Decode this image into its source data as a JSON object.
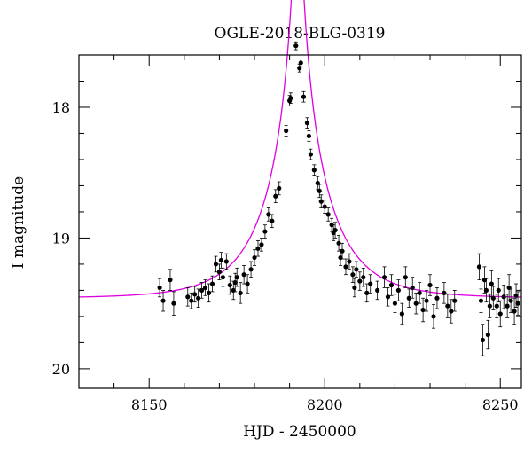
{
  "chart_data": {
    "type": "scatter",
    "title": "OGLE-2018-BLG-0319",
    "xlabel": "HJD - 2450000",
    "ylabel": "I magnitude",
    "xlim": [
      8130,
      8256
    ],
    "ylim": [
      20.15,
      17.6
    ],
    "y_inverted": true,
    "x_ticks": [
      8150,
      8200,
      8250
    ],
    "x_tick_labels": [
      "8150",
      "8200",
      "8250"
    ],
    "y_ticks": [
      18,
      19,
      20
    ],
    "y_tick_labels": [
      "18",
      "19",
      "20"
    ],
    "grid": false,
    "legend": "none",
    "colors": {
      "points": "#000000",
      "model": "#e000e0"
    },
    "model": {
      "description_none": "",
      "t0": 8192.3,
      "u0": 0.06,
      "tE": 17,
      "baseline": 19.46
    },
    "series": [
      {
        "points": [
          [
            8153,
            19.38,
            0.07
          ],
          [
            8154,
            19.48,
            0.08
          ],
          [
            8156,
            19.32,
            0.08
          ],
          [
            8157,
            19.5,
            0.09
          ],
          [
            8161,
            19.45,
            0.07
          ],
          [
            8162,
            19.48,
            0.06
          ],
          [
            8163,
            19.43,
            0.06
          ],
          [
            8164,
            19.46,
            0.07
          ],
          [
            8165,
            19.4,
            0.06
          ],
          [
            8166,
            19.38,
            0.06
          ],
          [
            8167,
            19.42,
            0.07
          ],
          [
            8168,
            19.35,
            0.06
          ],
          [
            8169,
            19.2,
            0.06
          ],
          [
            8170,
            19.26,
            0.06
          ],
          [
            8170.5,
            19.17,
            0.06
          ],
          [
            8171,
            19.3,
            0.07
          ],
          [
            8172,
            19.18,
            0.06
          ],
          [
            8173,
            19.36,
            0.07
          ],
          [
            8174,
            19.4,
            0.07
          ],
          [
            8174.5,
            19.34,
            0.07
          ],
          [
            8175,
            19.3,
            0.07
          ],
          [
            8176,
            19.42,
            0.08
          ],
          [
            8177,
            19.28,
            0.07
          ],
          [
            8178,
            19.35,
            0.07
          ],
          [
            8179,
            19.24,
            0.06
          ],
          [
            8180,
            19.15,
            0.06
          ],
          [
            8181,
            19.08,
            0.06
          ],
          [
            8182,
            19.05,
            0.05
          ],
          [
            8183,
            18.95,
            0.05
          ],
          [
            8184,
            18.82,
            0.05
          ],
          [
            8185,
            18.87,
            0.05
          ],
          [
            8186,
            18.68,
            0.05
          ],
          [
            8187,
            18.62,
            0.05
          ],
          [
            8189,
            18.18,
            0.04
          ],
          [
            8190,
            17.95,
            0.04
          ],
          [
            8190.3,
            17.93,
            0.04
          ],
          [
            8191.8,
            17.53,
            0.03
          ],
          [
            8192.8,
            17.7,
            0.03
          ],
          [
            8193.2,
            17.66,
            0.03
          ],
          [
            8194,
            17.92,
            0.04
          ],
          [
            8195,
            18.12,
            0.04
          ],
          [
            8195.5,
            18.22,
            0.04
          ],
          [
            8196,
            18.36,
            0.04
          ],
          [
            8197,
            18.48,
            0.04
          ],
          [
            8198,
            18.58,
            0.05
          ],
          [
            8198.5,
            18.64,
            0.05
          ],
          [
            8199,
            18.72,
            0.05
          ],
          [
            8200,
            18.76,
            0.05
          ],
          [
            8201,
            18.82,
            0.05
          ],
          [
            8202,
            18.9,
            0.05
          ],
          [
            8202.5,
            18.96,
            0.06
          ],
          [
            8203,
            18.94,
            0.06
          ],
          [
            8204,
            19.04,
            0.06
          ],
          [
            8204.5,
            19.15,
            0.06
          ],
          [
            8205,
            19.1,
            0.06
          ],
          [
            8206,
            19.22,
            0.06
          ],
          [
            8207,
            19.18,
            0.06
          ],
          [
            8208,
            19.28,
            0.06
          ],
          [
            8208.5,
            19.38,
            0.07
          ],
          [
            8209,
            19.24,
            0.06
          ],
          [
            8210,
            19.33,
            0.07
          ],
          [
            8211,
            19.3,
            0.07
          ],
          [
            8212,
            19.42,
            0.07
          ],
          [
            8213,
            19.35,
            0.07
          ],
          [
            8215,
            19.4,
            0.07
          ],
          [
            8217,
            19.3,
            0.08
          ],
          [
            8218,
            19.45,
            0.07
          ],
          [
            8219,
            19.36,
            0.08
          ],
          [
            8220,
            19.5,
            0.07
          ],
          [
            8221,
            19.4,
            0.08
          ],
          [
            8222,
            19.58,
            0.08
          ],
          [
            8223,
            19.3,
            0.08
          ],
          [
            8224,
            19.46,
            0.07
          ],
          [
            8225,
            19.38,
            0.08
          ],
          [
            8226,
            19.5,
            0.08
          ],
          [
            8227,
            19.42,
            0.08
          ],
          [
            8228,
            19.55,
            0.09
          ],
          [
            8229,
            19.48,
            0.08
          ],
          [
            8230,
            19.36,
            0.08
          ],
          [
            8231,
            19.6,
            0.09
          ],
          [
            8232,
            19.46,
            0.08
          ],
          [
            8234,
            19.42,
            0.08
          ],
          [
            8235,
            19.52,
            0.09
          ],
          [
            8236,
            19.56,
            0.09
          ],
          [
            8237,
            19.48,
            0.08
          ],
          [
            8244,
            19.22,
            0.1
          ],
          [
            8244.5,
            19.48,
            0.09
          ],
          [
            8245,
            19.78,
            0.12
          ],
          [
            8245.5,
            19.32,
            0.1
          ],
          [
            8246,
            19.4,
            0.09
          ],
          [
            8246.5,
            19.74,
            0.11
          ],
          [
            8247,
            19.52,
            0.09
          ],
          [
            8247.5,
            19.35,
            0.1
          ],
          [
            8248,
            19.46,
            0.09
          ],
          [
            8249,
            19.52,
            0.09
          ],
          [
            8249.5,
            19.4,
            0.09
          ],
          [
            8250,
            19.58,
            0.1
          ],
          [
            8251,
            19.45,
            0.09
          ],
          [
            8252,
            19.52,
            0.09
          ],
          [
            8252.5,
            19.38,
            0.1
          ],
          [
            8253,
            19.48,
            0.09
          ],
          [
            8254,
            19.56,
            0.1
          ],
          [
            8254.5,
            19.44,
            0.09
          ],
          [
            8255,
            19.5,
            0.09
          ]
        ]
      }
    ]
  }
}
